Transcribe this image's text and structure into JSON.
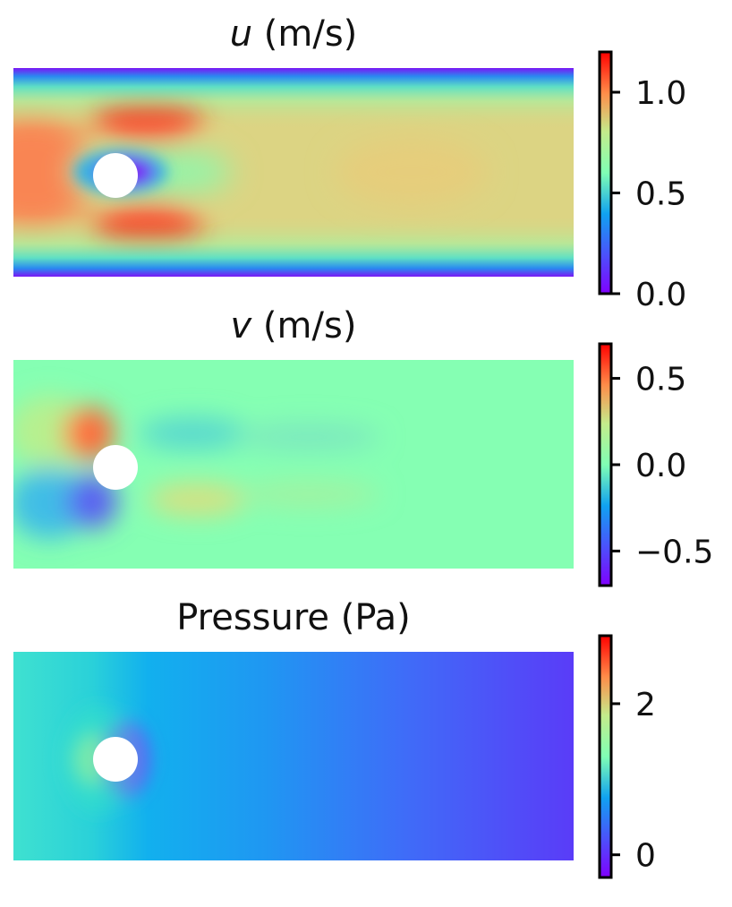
{
  "chart_data": [
    {
      "type": "heatmap",
      "title_symbol": "u",
      "title_rest": " (m/s)",
      "colormap": "rainbow",
      "clim": [
        0.0,
        1.2
      ],
      "ticks": [
        0.0,
        0.5,
        1.0
      ],
      "tick_labels": [
        "0.0",
        "0.5",
        "1.0"
      ],
      "colorbar_position": "right",
      "obstacle": "cylinder"
    },
    {
      "type": "heatmap",
      "title_symbol": "v",
      "title_rest": " (m/s)",
      "colormap": "rainbow",
      "clim": [
        -0.7,
        0.7
      ],
      "ticks": [
        -0.5,
        0.0,
        0.5
      ],
      "tick_labels": [
        "−0.5",
        "0.0",
        "0.5"
      ],
      "colorbar_position": "right",
      "obstacle": "cylinder"
    },
    {
      "type": "heatmap",
      "title_symbol": "",
      "title_rest": "Pressure (Pa)",
      "colormap": "rainbow",
      "clim": [
        -0.3,
        2.9
      ],
      "ticks": [
        0,
        2
      ],
      "tick_labels": [
        "0",
        "2"
      ],
      "colorbar_position": "right",
      "obstacle": "cylinder"
    }
  ]
}
